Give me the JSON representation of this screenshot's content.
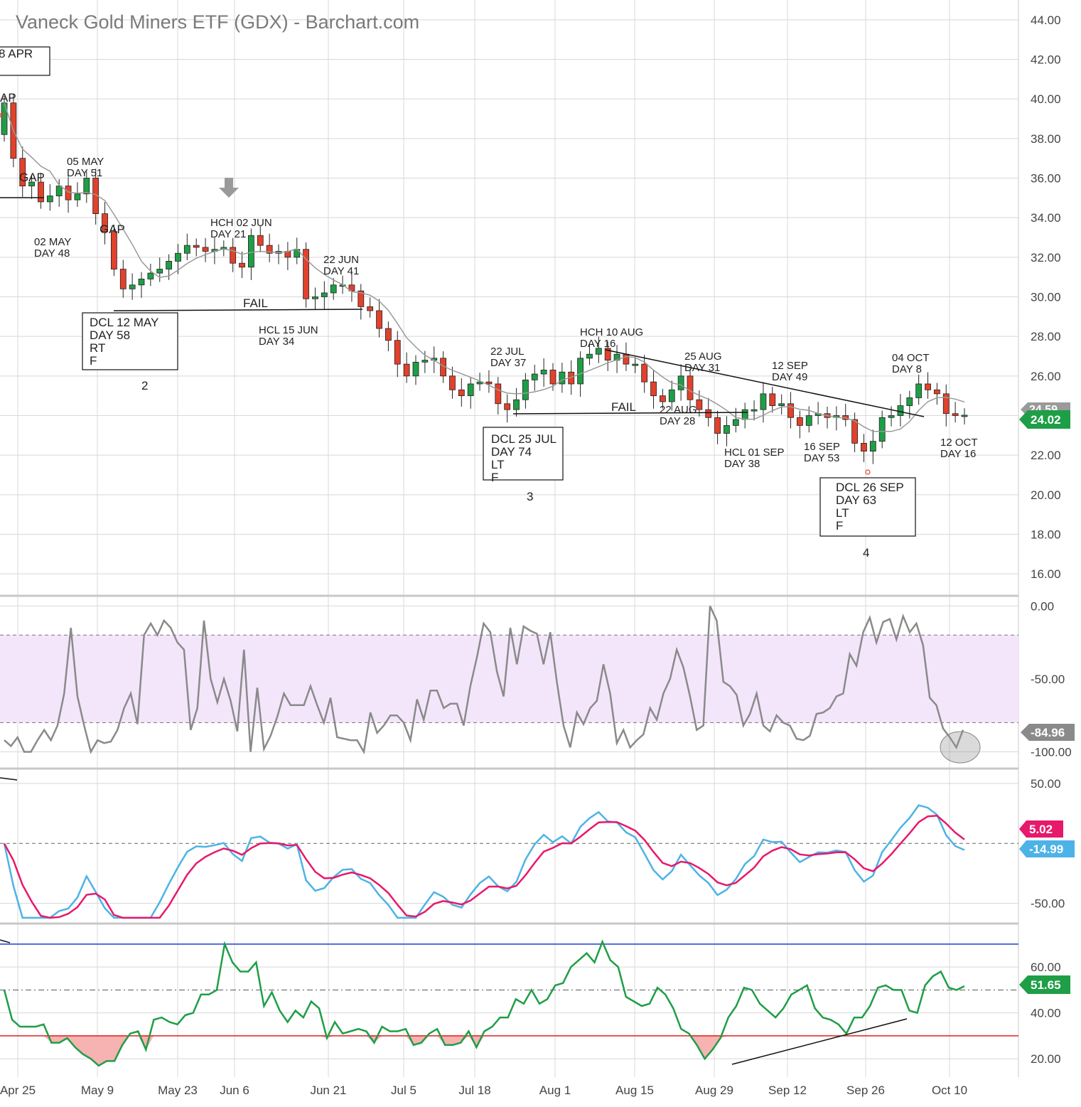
{
  "title": "Vaneck Gold Miners ETF (GDX) - Barchart.com",
  "colors": {
    "up": "#1e9e46",
    "down": "#e2412b",
    "ma": "#9a9a9a",
    "grid": "#d8d8d8",
    "stoch": "#8a8a8a",
    "zone": "#f3e6fb",
    "macd_fast": "#4db3e6",
    "macd_slow": "#e6196b",
    "rsi": "#1e9e46",
    "rsi_low_fill": "#f7b2b2",
    "rsi_upper": "#1a3fd6",
    "rsi_lower": "#e02020"
  },
  "chart_data": [
    {
      "type": "candlestick",
      "x_tick_labels": [
        "Apr 25",
        "May 9",
        "May 23",
        "Jun 6",
        "Jun 21",
        "Jul 5",
        "Jul 18",
        "Aug 1",
        "Aug 15",
        "Aug 29",
        "Sep 12",
        "Sep 26",
        "Oct 10"
      ],
      "y_tick_labels": [
        "44.00",
        "42.00",
        "40.00",
        "38.00",
        "36.00",
        "34.00",
        "32.00",
        "30.00",
        "28.00",
        "26.00",
        "24.00",
        "22.00",
        "20.00",
        "18.00",
        "16.00"
      ],
      "ylim": [
        15,
        45
      ],
      "last_price": "24.02",
      "ma_value": "24.59",
      "closes": [
        39.8,
        37.0,
        35.6,
        35.8,
        34.8,
        35.1,
        35.6,
        34.9,
        35.2,
        36.0,
        34.2,
        33.3,
        31.4,
        30.4,
        30.6,
        30.9,
        31.2,
        31.4,
        31.8,
        32.2,
        32.6,
        32.5,
        32.3,
        32.4,
        32.5,
        31.7,
        31.5,
        33.1,
        32.6,
        32.2,
        32.3,
        32.0,
        32.4,
        29.9,
        30.0,
        30.2,
        30.6,
        30.6,
        30.3,
        29.5,
        29.3,
        28.4,
        27.8,
        26.6,
        26.0,
        26.7,
        26.8,
        26.9,
        26.0,
        25.3,
        25.0,
        25.6,
        25.7,
        25.6,
        24.6,
        24.3,
        24.8,
        25.8,
        26.1,
        26.3,
        25.6,
        26.2,
        25.6,
        26.9,
        27.1,
        27.4,
        26.8,
        27.1,
        26.6,
        26.6,
        25.7,
        25.0,
        24.7,
        25.3,
        26.0,
        24.8,
        24.3,
        23.9,
        23.1,
        23.5,
        23.8,
        24.3,
        24.3,
        25.1,
        24.5,
        24.6,
        23.9,
        23.5,
        24.0,
        24.1,
        23.9,
        24.0,
        23.8,
        22.6,
        22.2,
        22.7,
        23.9,
        24.0,
        24.5,
        24.9,
        25.6,
        25.3,
        25.1,
        24.1,
        24.0,
        24.02
      ],
      "series": [
        {
          "name": "",
          "values": []
        }
      ],
      "annotations": [
        {
          "text": "8 APR",
          "boxed": true
        },
        {
          "text": "AP"
        },
        {
          "text": "GAP"
        },
        {
          "text": "05 MAY\nDAY 51"
        },
        {
          "text": "02 MAY\nDAY 48"
        },
        {
          "text": "GAP"
        },
        {
          "text": "DCL 12 MAY\nDAY 58\nRT\nF",
          "boxed": true
        },
        {
          "text": "2"
        },
        {
          "text": "FAIL"
        },
        {
          "text": "HCH 02 JUN\nDAY 21"
        },
        {
          "text": "22 JUN\nDAY 41"
        },
        {
          "text": "HCL 15 JUN\nDAY 34"
        },
        {
          "text": "22 JUL\nDAY 37"
        },
        {
          "text": "DCL 25 JUL\nDAY 74\nLT\nF",
          "boxed": true
        },
        {
          "text": "3"
        },
        {
          "text": "HCH 10 AUG\nDAY 16"
        },
        {
          "text": "25 AUG\nDAY 31"
        },
        {
          "text": "FAIL"
        },
        {
          "text": "22 AUG\nDAY 28"
        },
        {
          "text": "12 SEP\nDAY 49"
        },
        {
          "text": "HCL 01 SEP\nDAY 38"
        },
        {
          "text": "16 SEP\nDAY 53"
        },
        {
          "text": "04 OCT\nDAY 8"
        },
        {
          "text": "12 OCT\nDAY 16"
        },
        {
          "text": "DCL 26 SEP\nDAY 63\nLT\nF",
          "boxed": true
        },
        {
          "text": "4"
        }
      ]
    },
    {
      "type": "line",
      "name": "stochastic",
      "y_tick_labels": [
        "0.00",
        "-50.00",
        "-100.00"
      ],
      "ylim": [
        -110,
        5
      ],
      "last_value": "-84.96",
      "values": [
        -92,
        -96,
        -90,
        -100,
        -100,
        -92,
        -85,
        -92,
        -82,
        -60,
        -15,
        -62,
        -82,
        -100,
        -92,
        -94,
        -93,
        -85,
        -70,
        -60,
        -81,
        -20,
        -12,
        -20,
        -10,
        -15,
        -25,
        -30,
        -85,
        -70,
        -10,
        -50,
        -66,
        -50,
        -65,
        -86,
        -30,
        -100,
        -56,
        -98,
        -89,
        -76,
        -60,
        -68,
        -68,
        -68,
        -55,
        -68,
        -80,
        -63,
        -90,
        -91,
        -92,
        -92,
        -100,
        -73,
        -87,
        -82,
        -75,
        -75,
        -80,
        -92,
        -64,
        -78,
        -58,
        -58,
        -70,
        -67,
        -67,
        -82,
        -55,
        -35,
        -12,
        -18,
        -45,
        -62,
        -15,
        -40,
        -14,
        -17,
        -19,
        -40,
        -18,
        -52,
        -82,
        -97,
        -73,
        -81,
        -70,
        -65,
        -40,
        -60,
        -94,
        -85,
        -97,
        -92,
        -88,
        -70,
        -78,
        -60,
        -50,
        -30,
        -42,
        -62,
        -85,
        -82,
        0,
        -10,
        -52,
        -55,
        -61,
        -82,
        -74,
        -60,
        -82,
        -86,
        -75,
        -80,
        -82,
        -91,
        -92,
        -89,
        -74,
        -73,
        -70,
        -62,
        -60,
        -33,
        -41,
        -18,
        -8,
        -25,
        -11,
        -9,
        -23,
        -7,
        -18,
        -12,
        -27,
        -63,
        -68,
        -84,
        -90,
        -97,
        -84.96
      ]
    },
    {
      "type": "line",
      "name": "macd",
      "y_tick_labels": [
        "50.00",
        "-50.00"
      ],
      "ylim": [
        -65,
        60
      ],
      "fast_value": "-14.99",
      "slow_value": "5.02"
    },
    {
      "type": "line",
      "name": "rsi",
      "y_tick_labels": [
        "60.00",
        "40.00",
        "20.00"
      ],
      "ylim": [
        12,
        78
      ],
      "last_value": "51.65",
      "upper_band": 70,
      "lower_band": 30,
      "midline": 50,
      "values": [
        50,
        37,
        34,
        34,
        34,
        35,
        27,
        27,
        29,
        25,
        22,
        20,
        17,
        19,
        19,
        26,
        31,
        32,
        24,
        37,
        38,
        36,
        35,
        39,
        40,
        48,
        48,
        50,
        70,
        62,
        58,
        58,
        62,
        43,
        49,
        41,
        36,
        41,
        38,
        45,
        42,
        29,
        36,
        31,
        32,
        33,
        32,
        27,
        34,
        32,
        32,
        33,
        26,
        27,
        31,
        33,
        26,
        26,
        27,
        32,
        25,
        32,
        34,
        38,
        38,
        46,
        44,
        50,
        44,
        46,
        52,
        53,
        60,
        63,
        66,
        62,
        71,
        63,
        60,
        47,
        45,
        43,
        44,
        51,
        48,
        42,
        33,
        31,
        26,
        20,
        24,
        29,
        38,
        43,
        51,
        50,
        44,
        41,
        38,
        42,
        48,
        50,
        52,
        42,
        38,
        37,
        35,
        31,
        38,
        38,
        43,
        51,
        52,
        50,
        50,
        41,
        40,
        52,
        56,
        58,
        51,
        50,
        51.65
      ]
    }
  ]
}
